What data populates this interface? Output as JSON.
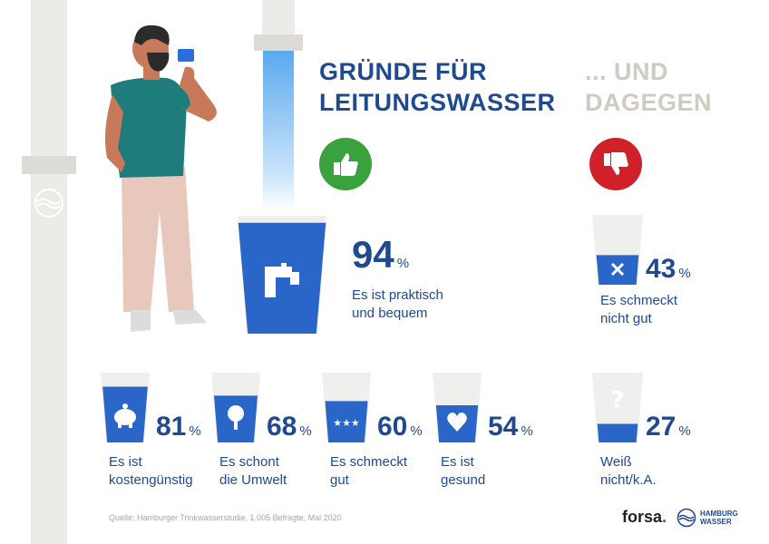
{
  "header": {
    "title_pro_line1": "GRÜNDE FÜR",
    "title_pro_line2": "LEITUNGSWASSER",
    "title_con_line1": "... UND",
    "title_con_line2": "DAGEGEN"
  },
  "icons": {
    "thumbs_up": "thumbs-up-icon",
    "thumbs_down": "thumbs-down-icon",
    "tap": "tap-icon",
    "piggy_bank": "piggy-bank-icon",
    "tree": "tree-icon",
    "stars": "stars-icon",
    "heart": "heart-icon",
    "cross": "cross-icon",
    "question": "question-icon"
  },
  "colors": {
    "brand_blue": "#1f4a8f",
    "water_blue": "#2a66c8",
    "thumbs_up_green": "#3aa23c",
    "thumbs_down_red": "#d0202a"
  },
  "chart_data": {
    "type": "bar",
    "unit": "%",
    "pro": [
      {
        "value": 94,
        "unit": "%",
        "label_line1": "Es ist praktisch",
        "label_line2": "und bequem"
      },
      {
        "value": 81,
        "unit": "%",
        "label_line1": "Es ist",
        "label_line2": "kostengünstig"
      },
      {
        "value": 68,
        "unit": "%",
        "label_line1": "Es schont",
        "label_line2": "die Umwelt"
      },
      {
        "value": 60,
        "unit": "%",
        "label_line1": "Es schmeckt",
        "label_line2": "gut"
      },
      {
        "value": 54,
        "unit": "%",
        "label_line1": "Es ist",
        "label_line2": "gesund"
      }
    ],
    "con": [
      {
        "value": 43,
        "unit": "%",
        "label_line1": "Es schmeckt",
        "label_line2": "nicht gut"
      },
      {
        "value": 27,
        "unit": "%",
        "label_line1": "Weiß",
        "label_line2": "nicht/k.A."
      }
    ]
  },
  "footer": {
    "source": "Quelle: Hamburger Trinkwasserstudie, 1.005 Befragte, Mai 2020",
    "forsa_name": "forsa",
    "forsa_dot": ".",
    "hw_line1": "HAMBURG",
    "hw_line2": "WASSER"
  }
}
